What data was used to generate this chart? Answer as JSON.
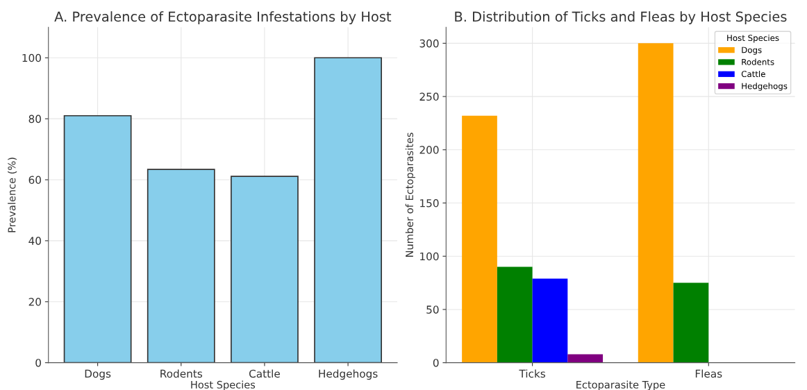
{
  "chart_data": [
    {
      "type": "bar",
      "title": "A. Prevalence of Ectoparasite Infestations by Host",
      "xlabel": "Host Species",
      "ylabel": "Prevalence (%)",
      "categories": [
        "Dogs",
        "Rodents",
        "Cattle",
        "Hedgehogs"
      ],
      "values": [
        81,
        63.4,
        61.1,
        100
      ],
      "color": "#87ceeb",
      "ylim": [
        0,
        110
      ],
      "yticks": [
        0,
        20,
        40,
        60,
        80,
        100
      ],
      "grid": true
    },
    {
      "type": "bar",
      "title": "B. Distribution of Ticks and Fleas by Host Species",
      "xlabel": "Ectoparasite Type",
      "ylabel": "Number of Ectoparasites",
      "legend_title": "Host Species",
      "legend": "top right",
      "categories": [
        "Ticks",
        "Fleas"
      ],
      "series": [
        {
          "name": "Dogs",
          "color": "#ffa500",
          "values": [
            232,
            300
          ]
        },
        {
          "name": "Rodents",
          "color": "#008000",
          "values": [
            90,
            75
          ]
        },
        {
          "name": "Cattle",
          "color": "#0000ff",
          "values": [
            79,
            0
          ]
        },
        {
          "name": "Hedgehogs",
          "color": "#800080",
          "values": [
            8,
            0
          ]
        }
      ],
      "ylim": [
        0,
        315
      ],
      "yticks": [
        0,
        50,
        100,
        150,
        200,
        250,
        300
      ],
      "grid": true
    }
  ]
}
